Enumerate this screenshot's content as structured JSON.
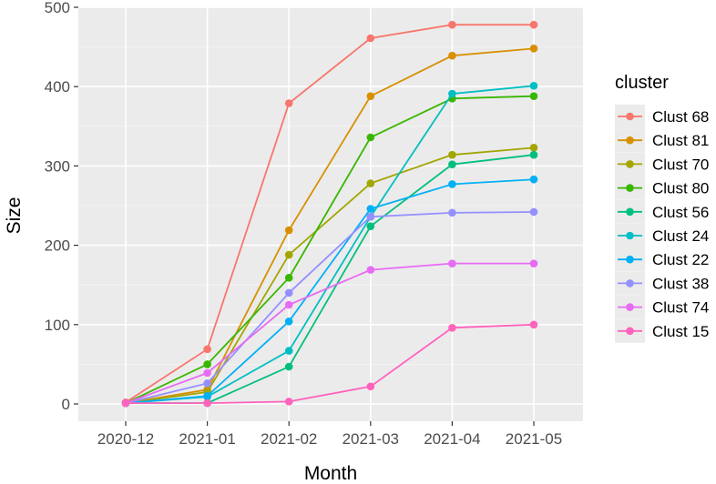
{
  "chart_data": {
    "type": "line",
    "title": "",
    "xlabel": "Month",
    "ylabel": "Size",
    "categories": [
      "2020-12",
      "2021-01",
      "2021-02",
      "2021-03",
      "2021-04",
      "2021-05"
    ],
    "yticks": [
      "0",
      "100",
      "200",
      "300",
      "400",
      "500"
    ],
    "ylim": [
      0,
      500
    ],
    "grid": true,
    "legend": {
      "title": "cluster",
      "position": "right"
    },
    "series": [
      {
        "name": "Clust 68",
        "color": "#F8766D",
        "values": [
          2,
          69,
          379,
          461,
          478,
          478
        ]
      },
      {
        "name": "Clust 81",
        "color": "#D89000",
        "values": [
          1,
          18,
          219,
          388,
          439,
          448
        ]
      },
      {
        "name": "Clust 70",
        "color": "#A3A500",
        "values": [
          1,
          15,
          188,
          278,
          314,
          323
        ]
      },
      {
        "name": "Clust 80",
        "color": "#39B600",
        "values": [
          1,
          50,
          159,
          336,
          385,
          388
        ]
      },
      {
        "name": "Clust 56",
        "color": "#00BF7D",
        "values": [
          1,
          1,
          47,
          224,
          302,
          314
        ]
      },
      {
        "name": "Clust 24",
        "color": "#00BFC4",
        "values": [
          1,
          9,
          67,
          236,
          391,
          401
        ]
      },
      {
        "name": "Clust 22",
        "color": "#00B0F6",
        "values": [
          1,
          10,
          104,
          246,
          277,
          283
        ]
      },
      {
        "name": "Clust 38",
        "color": "#9590FF",
        "values": [
          1,
          26,
          140,
          236,
          241,
          242
        ]
      },
      {
        "name": "Clust 74",
        "color": "#E76BF3",
        "values": [
          1,
          39,
          125,
          169,
          177,
          177
        ]
      },
      {
        "name": "Clust 15",
        "color": "#FF62BC",
        "values": [
          1,
          1,
          3,
          22,
          96,
          100
        ]
      }
    ]
  }
}
